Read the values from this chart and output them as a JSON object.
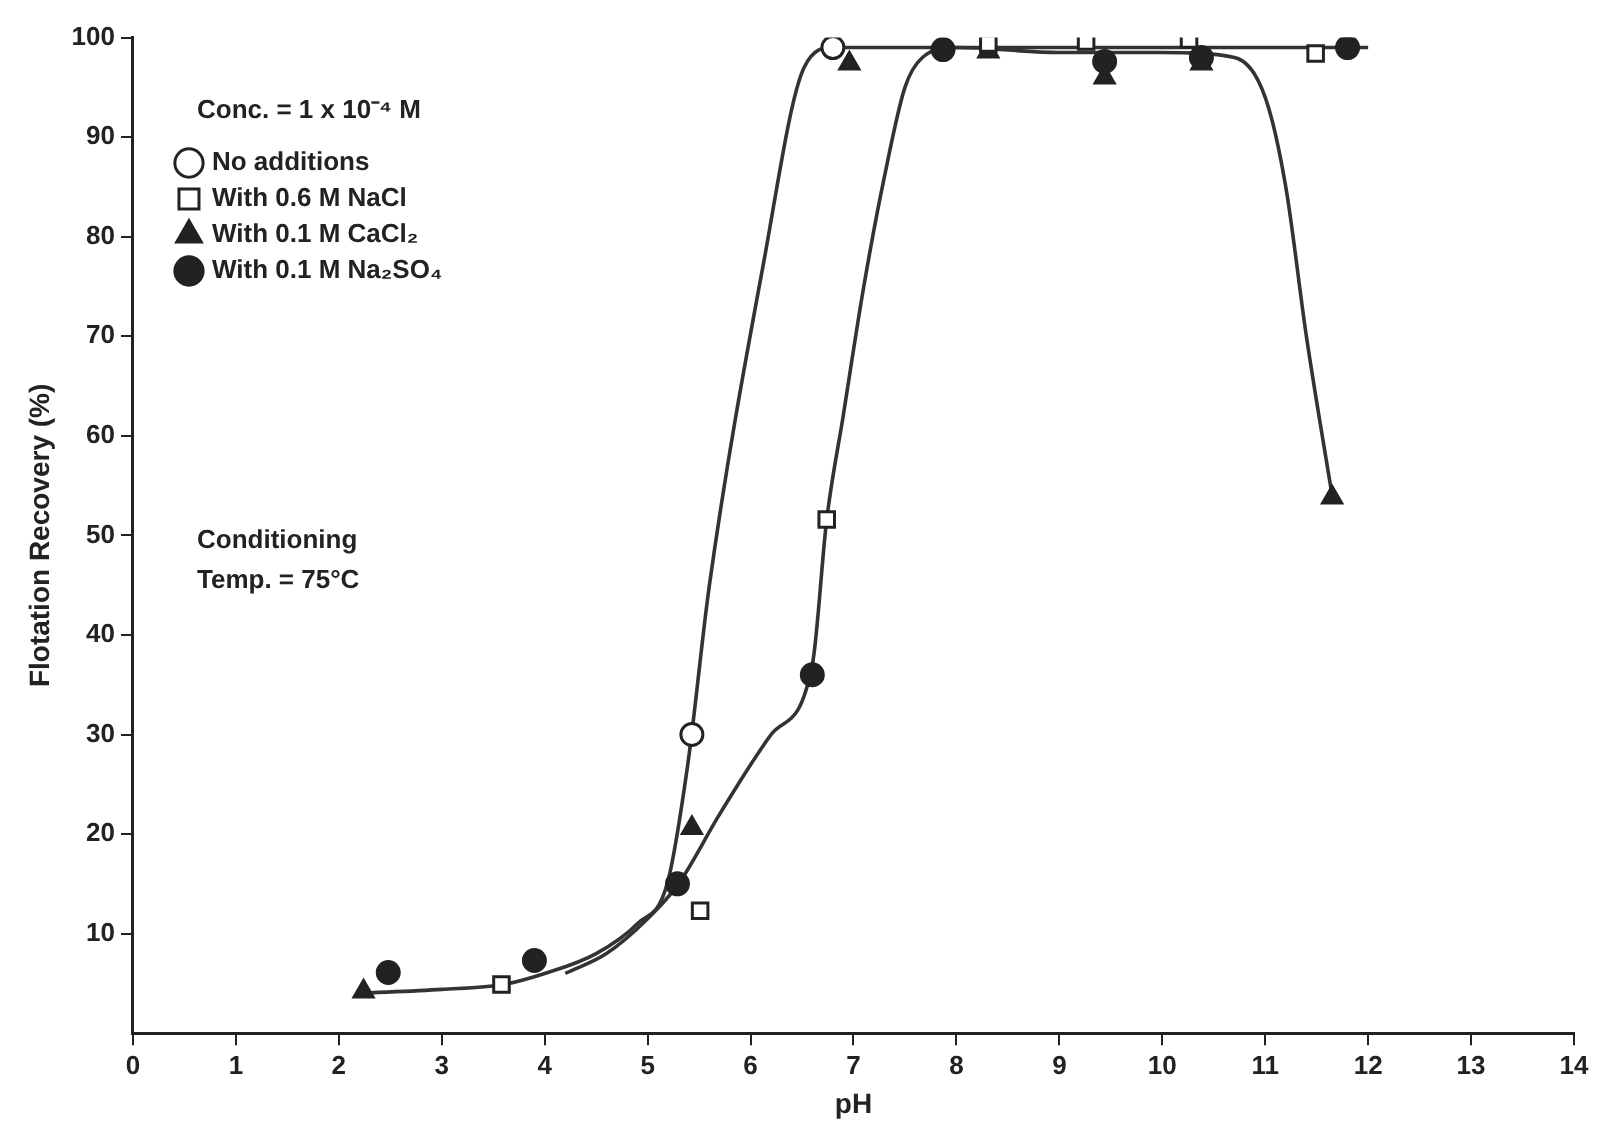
{
  "chart_data": {
    "type": "scatter",
    "xlabel": "pH",
    "ylabel": "Flotation Recovery (%)",
    "annotations": [
      "Conc. = 1 x 10⁻⁴ M",
      "Conditioning\nTemp. = 75°C"
    ],
    "xlim": [
      0,
      14
    ],
    "xticks": [
      0,
      1,
      2,
      3,
      4,
      5,
      6,
      7,
      8,
      9,
      10,
      11,
      12,
      13,
      14
    ],
    "ylim": [
      0,
      100
    ],
    "yticks": [
      10,
      20,
      30,
      40,
      50,
      60,
      70,
      80,
      90,
      100
    ],
    "grid": false,
    "legend": "top left",
    "series": [
      {
        "name": "No additions",
        "marker": "circle",
        "color": "#ffffff",
        "x": [
          5.43,
          6.8
        ],
        "values": [
          30,
          99
        ]
      },
      {
        "name": "With 0.6 M NaCl",
        "marker": "square",
        "color": "#ffffff",
        "x": [
          3.58,
          5.51,
          6.74,
          8.31,
          9.26,
          10.26,
          11.49
        ],
        "values": [
          4.9,
          12.3,
          51.6,
          99.4,
          99.6,
          99.8,
          98.4
        ]
      },
      {
        "name": "With 0.1 M CaCl₂",
        "marker": "triangle",
        "color": "#222222",
        "x": [
          2.24,
          5.43,
          6.96,
          8.31,
          9.44,
          10.38,
          11.65
        ],
        "values": [
          4.2,
          20.6,
          97.4,
          98.6,
          96,
          97.4,
          53.8
        ]
      },
      {
        "name": "With 0.1 M Na₂SO₄",
        "marker": "circle",
        "color": "#222222",
        "x": [
          2.48,
          3.9,
          5.29,
          6.6,
          7.87,
          9.44,
          10.38,
          11.8
        ],
        "values": [
          6.1,
          7.3,
          15,
          36,
          98.8,
          97.6,
          98,
          99
        ]
      },
      {
        "type": "line",
        "marker": "none",
        "line_style": "solid",
        "color": "#333333",
        "x": [
          2.2,
          3.0,
          3.6,
          4.0,
          4.5,
          4.9,
          5.19,
          5.39,
          5.6,
          6.12,
          6.52,
          6.8,
          8,
          9,
          10,
          10.7,
          11.0,
          11.2,
          11.4,
          11.65
        ],
        "values": [
          4,
          4.4,
          4.9,
          6,
          8,
          11,
          15,
          27,
          45,
          77,
          97,
          99,
          99,
          98.5,
          98.5,
          98,
          94,
          85,
          70,
          54
        ]
      },
      {
        "type": "line",
        "marker": "none",
        "line_style": "solid",
        "color": "#333333",
        "x": [
          4.2,
          4.6,
          5.0,
          5.3,
          5.7,
          6.2,
          6.6,
          6.74,
          6.9,
          7.1,
          7.3,
          7.5,
          7.67,
          8,
          10,
          12
        ],
        "values": [
          6,
          8,
          11.5,
          15,
          22,
          30,
          37,
          51.6,
          62,
          75,
          86,
          95,
          98,
          99,
          99,
          99
        ]
      }
    ]
  }
}
